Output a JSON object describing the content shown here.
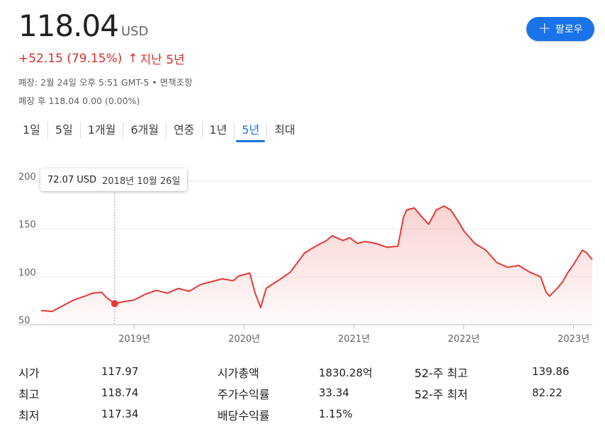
{
  "header": {
    "price": "118.04",
    "currency": "USD",
    "change": "+52.15 (79.15%)",
    "change_arrow": "↑",
    "period": "지난 5년",
    "follow_label": "팔로우",
    "follow_icon": "plus-icon",
    "market_status": "폐장: 2월 24일 오후 5:51 GMT-5 • 면책조항",
    "after_hours": "폐장 후 118.04 0.00 (0.00%)"
  },
  "tabs": [
    {
      "label": "1일"
    },
    {
      "label": "5일"
    },
    {
      "label": "1개월"
    },
    {
      "label": "6개월"
    },
    {
      "label": "연중"
    },
    {
      "label": "1년"
    },
    {
      "label": "5년",
      "active": true
    },
    {
      "label": "최대"
    }
  ],
  "tooltip": {
    "value": "72.07 USD",
    "date": "2018년 10월 26일"
  },
  "colors": {
    "line": "#e53935",
    "accent": "#1a73e8",
    "negative": "#d93025"
  },
  "chart_data": {
    "type": "area",
    "ylim": [
      50,
      200
    ],
    "yticks": [
      200,
      150,
      100,
      50
    ],
    "xlim": [
      2018.15,
      2023.17
    ],
    "xticks": [
      {
        "x": 2019.0,
        "label": "2019년"
      },
      {
        "x": 2020.0,
        "label": "2020년"
      },
      {
        "x": 2021.0,
        "label": "2021년"
      },
      {
        "x": 2022.0,
        "label": "2022년"
      },
      {
        "x": 2023.0,
        "label": "2023년"
      }
    ],
    "marker": {
      "x": 2018.82,
      "y": 72.07
    },
    "series": [
      {
        "x": [
          2018.15,
          2018.25,
          2018.35,
          2018.45,
          2018.55,
          2018.62,
          2018.7,
          2018.75,
          2018.82,
          2018.9,
          2019.0,
          2019.1,
          2019.2,
          2019.3,
          2019.4,
          2019.5,
          2019.6,
          2019.7,
          2019.8,
          2019.9,
          2019.95,
          2020.05,
          2020.1,
          2020.15,
          2020.2,
          2020.25,
          2020.32,
          2020.42,
          2020.55,
          2020.65,
          2020.75,
          2020.8,
          2020.9,
          2020.96,
          2021.03,
          2021.1,
          2021.2,
          2021.3,
          2021.4,
          2021.45,
          2021.48,
          2021.55,
          2021.6,
          2021.68,
          2021.75,
          2021.82,
          2021.88,
          2021.95,
          2022.0,
          2022.1,
          2022.2,
          2022.3,
          2022.4,
          2022.5,
          2022.6,
          2022.7,
          2022.75,
          2022.78,
          2022.85,
          2022.9,
          2022.95,
          2023.0,
          2023.08,
          2023.12,
          2023.17
        ],
        "values": [
          65,
          64,
          70,
          76,
          80,
          83,
          84,
          78,
          72.07,
          74,
          76,
          82,
          86,
          83,
          88,
          85,
          92,
          95,
          98,
          96,
          101,
          104,
          83,
          68,
          88,
          92,
          97,
          105,
          125,
          132,
          138,
          143,
          138,
          141,
          135,
          137,
          135,
          131,
          132,
          162,
          170,
          172,
          165,
          155,
          170,
          174,
          170,
          158,
          148,
          135,
          128,
          115,
          110,
          112,
          105,
          100,
          84,
          80,
          88,
          95,
          105,
          113,
          128,
          125,
          118
        ]
      }
    ]
  },
  "stats": {
    "col1": [
      {
        "label": "시가",
        "value": "117.97"
      },
      {
        "label": "최고",
        "value": "118.74"
      },
      {
        "label": "최저",
        "value": "117.34"
      }
    ],
    "col2": [
      {
        "label": "시가총액",
        "value": "1830.28억"
      },
      {
        "label": "주가수익률",
        "value": "33.34"
      },
      {
        "label": "배당수익률",
        "value": "1.15%"
      }
    ],
    "col3": [
      {
        "label": "52-주 최고",
        "value": "139.86"
      },
      {
        "label": "52-주 최저",
        "value": "82.22"
      }
    ]
  }
}
